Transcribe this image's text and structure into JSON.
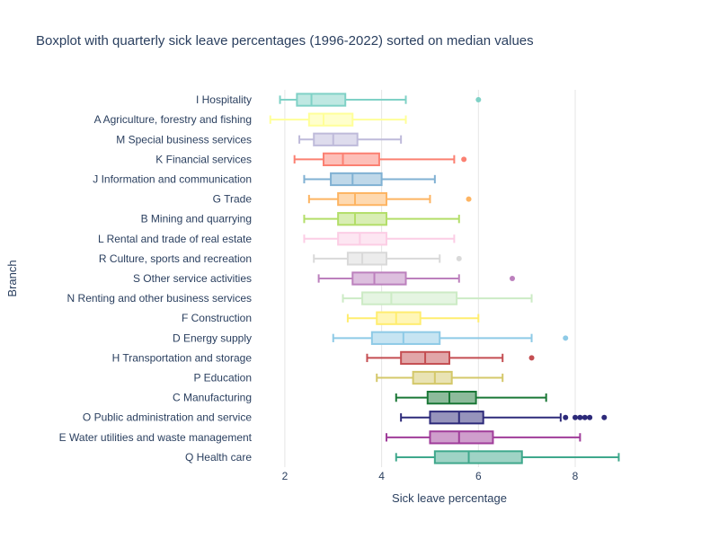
{
  "chart_data": {
    "type": "boxplot",
    "title": "Boxplot with quarterly sick leave percentages (1996-2022) sorted on median values",
    "xlabel": "Sick leave percentage",
    "ylabel": "Branch",
    "xlim": [
      1.5,
      9.3
    ],
    "xticks": [
      2,
      4,
      6,
      8
    ],
    "x_tick_labels": [
      "2",
      "4",
      "6",
      "8"
    ],
    "grid": "vertical",
    "series": [
      {
        "name": "I Hospitality",
        "color": "#7fd1c6",
        "fill": "#bfe8e2",
        "min": 1.9,
        "q1": 2.25,
        "median": 2.55,
        "q3": 3.25,
        "max": 4.5,
        "outliers": [
          6.0
        ]
      },
      {
        "name": "A Agriculture, forestry and fishing",
        "color": "#ffff99",
        "fill": "#ffffcc",
        "min": 1.7,
        "q1": 2.5,
        "median": 2.8,
        "q3": 3.4,
        "max": 4.5,
        "outliers": []
      },
      {
        "name": "M Special business services",
        "color": "#bebada",
        "fill": "#dedced",
        "min": 2.3,
        "q1": 2.6,
        "median": 3.0,
        "q3": 3.5,
        "max": 4.4,
        "outliers": []
      },
      {
        "name": "K Financial services",
        "color": "#fb8072",
        "fill": "#fdbfb8",
        "min": 2.2,
        "q1": 2.8,
        "median": 3.2,
        "q3": 3.95,
        "max": 5.5,
        "outliers": [
          5.7
        ]
      },
      {
        "name": "J Information and communication",
        "color": "#80b1d3",
        "fill": "#bfd8e9",
        "min": 2.4,
        "q1": 2.95,
        "median": 3.4,
        "q3": 4.0,
        "max": 5.1,
        "outliers": []
      },
      {
        "name": "G Trade",
        "color": "#fdb462",
        "fill": "#fed9b0",
        "min": 2.5,
        "q1": 3.1,
        "median": 3.45,
        "q3": 4.1,
        "max": 5.0,
        "outliers": [
          5.8
        ]
      },
      {
        "name": "B Mining and quarrying",
        "color": "#b3de69",
        "fill": "#d9eeb4",
        "min": 2.4,
        "q1": 3.1,
        "median": 3.45,
        "q3": 4.1,
        "max": 5.6,
        "outliers": []
      },
      {
        "name": "L Rental and trade of real estate",
        "color": "#fccde5",
        "fill": "#fde6f2",
        "min": 2.4,
        "q1": 3.1,
        "median": 3.55,
        "q3": 4.1,
        "max": 5.5,
        "outliers": []
      },
      {
        "name": "R Culture, sports and recreation",
        "color": "#d9d9d9",
        "fill": "#ececec",
        "min": 2.6,
        "q1": 3.3,
        "median": 3.6,
        "q3": 4.1,
        "max": 5.2,
        "outliers": [
          5.6
        ]
      },
      {
        "name": "S Other service activities",
        "color": "#bc80bd",
        "fill": "#ddbfde",
        "min": 2.7,
        "q1": 3.4,
        "median": 3.85,
        "q3": 4.5,
        "max": 5.6,
        "outliers": [
          6.7
        ]
      },
      {
        "name": "N Renting and other business services",
        "color": "#ccebc5",
        "fill": "#e5f5e2",
        "min": 3.2,
        "q1": 3.6,
        "median": 4.2,
        "q3": 5.55,
        "max": 7.1,
        "outliers": []
      },
      {
        "name": "F Construction",
        "color": "#ffed6f",
        "fill": "#fff6b7",
        "min": 3.3,
        "q1": 3.9,
        "median": 4.3,
        "q3": 4.8,
        "max": 6.0,
        "outliers": []
      },
      {
        "name": "D Energy supply",
        "color": "#8ecae6",
        "fill": "#c6e4f2",
        "min": 3.0,
        "q1": 3.8,
        "median": 4.45,
        "q3": 5.2,
        "max": 7.1,
        "outliers": [
          7.8
        ]
      },
      {
        "name": "H Transportation and storage",
        "color": "#c44e52",
        "fill": "#e1a6a8",
        "min": 3.7,
        "q1": 4.4,
        "median": 4.9,
        "q3": 5.4,
        "max": 6.5,
        "outliers": [
          7.1
        ]
      },
      {
        "name": "P Education",
        "color": "#d4c86a",
        "fill": "#e9e3b4",
        "min": 3.9,
        "q1": 4.65,
        "median": 5.1,
        "q3": 5.45,
        "max": 6.5,
        "outliers": []
      },
      {
        "name": "C Manufacturing",
        "color": "#1b7837",
        "fill": "#8dbb9b",
        "min": 4.3,
        "q1": 4.95,
        "median": 5.4,
        "q3": 5.95,
        "max": 7.4,
        "outliers": []
      },
      {
        "name": "O Public administration and service",
        "color": "#2d2a7a",
        "fill": "#9694bc",
        "min": 4.4,
        "q1": 5.0,
        "median": 5.6,
        "q3": 6.1,
        "max": 7.7,
        "outliers": [
          7.8,
          8.0,
          8.1,
          8.2,
          8.3,
          8.6
        ]
      },
      {
        "name": "E Water utilities and waste management",
        "color": "#a03d9a",
        "fill": "#cf9ecc",
        "min": 4.1,
        "q1": 5.0,
        "median": 5.6,
        "q3": 6.3,
        "max": 8.1,
        "outliers": []
      },
      {
        "name": "Q Health care",
        "color": "#3fa88c",
        "fill": "#9fd3c5",
        "min": 4.3,
        "q1": 5.1,
        "median": 5.8,
        "q3": 6.9,
        "max": 8.9,
        "outliers": []
      }
    ]
  }
}
